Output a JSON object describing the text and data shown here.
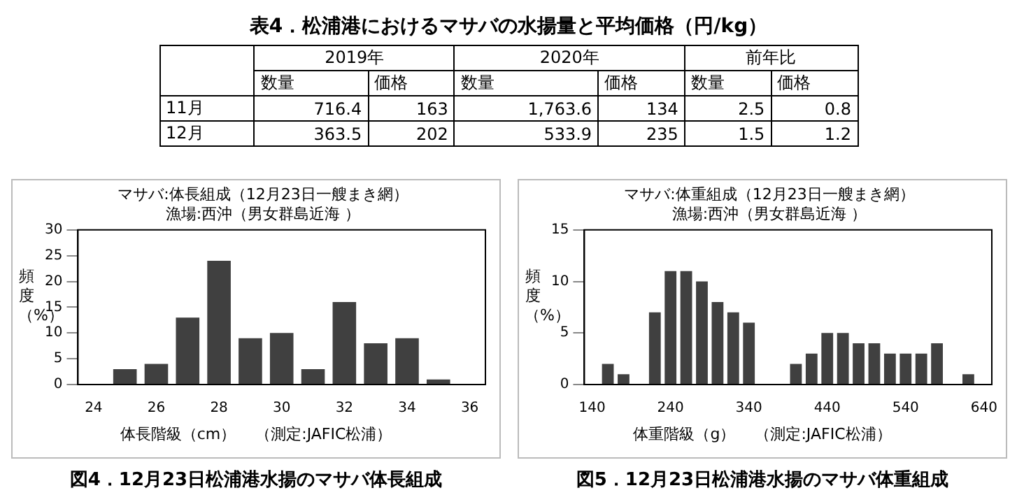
{
  "chart_data": [
    {
      "type": "other",
      "title": "表4．松浦港におけるマサバの水揚量と平均価格（円/kg）",
      "annotations": [
        "2019年",
        "2020年",
        "前年比"
      ],
      "categories": [
        "数量",
        "価格",
        "数量",
        "価格",
        "数量",
        "価格"
      ],
      "y_categories": [
        "11月",
        "12月"
      ],
      "cell_labels": [
        [
          "716.4",
          "163",
          "1,763.6",
          "134",
          "2.5",
          "0.8"
        ],
        [
          "363.5",
          "202",
          "533.9",
          "235",
          "1.5",
          "1.2"
        ]
      ]
    },
    {
      "type": "bar",
      "title": "マサバ:体長組成（12月23日一艘まき網）",
      "subtitle": "漁場:西沖（男女群島近海 ）",
      "xlabel": "体長階級（cm）",
      "ylabel": "頻度（%）",
      "annotations": [
        "（測定:JAFIC松浦）",
        "図4．12月23日松浦港水揚のマサバ体長組成"
      ],
      "categories": [
        "24",
        null,
        "26",
        null,
        "28",
        null,
        "30",
        null,
        "32",
        null,
        "34",
        null,
        "36"
      ],
      "values": [
        0,
        3,
        4,
        13,
        24,
        9,
        10,
        3,
        16,
        8,
        9,
        1,
        0
      ],
      "color": "#404040",
      "ylim": [
        0,
        30
      ],
      "yticks": [
        0,
        5,
        10,
        15,
        20,
        25,
        30
      ]
    },
    {
      "type": "bar",
      "title": "マサバ:体重組成（12月23日一艘まき網）",
      "subtitle": "漁場:西沖（男女群島近海 ）",
      "xlabel": "体重階級（g）",
      "ylabel": "頻度（%）",
      "annotations": [
        "（測定:JAFIC松浦）",
        "図5．12月23日松浦港水揚のマサバ体重組成"
      ],
      "categories": [
        "140",
        null,
        null,
        null,
        null,
        "240",
        null,
        null,
        null,
        null,
        "340",
        null,
        null,
        null,
        null,
        "440",
        null,
        null,
        null,
        null,
        "540",
        null,
        null,
        null,
        null,
        "640"
      ],
      "values": [
        0,
        2,
        1,
        0,
        7,
        11,
        11,
        10,
        8,
        7,
        6,
        0,
        0,
        2,
        3,
        5,
        5,
        4,
        4,
        3,
        3,
        3,
        4,
        0,
        1,
        0
      ],
      "color": "#404040",
      "ylim": [
        0,
        15
      ],
      "yticks": [
        0,
        5,
        10,
        15
      ]
    }
  ]
}
